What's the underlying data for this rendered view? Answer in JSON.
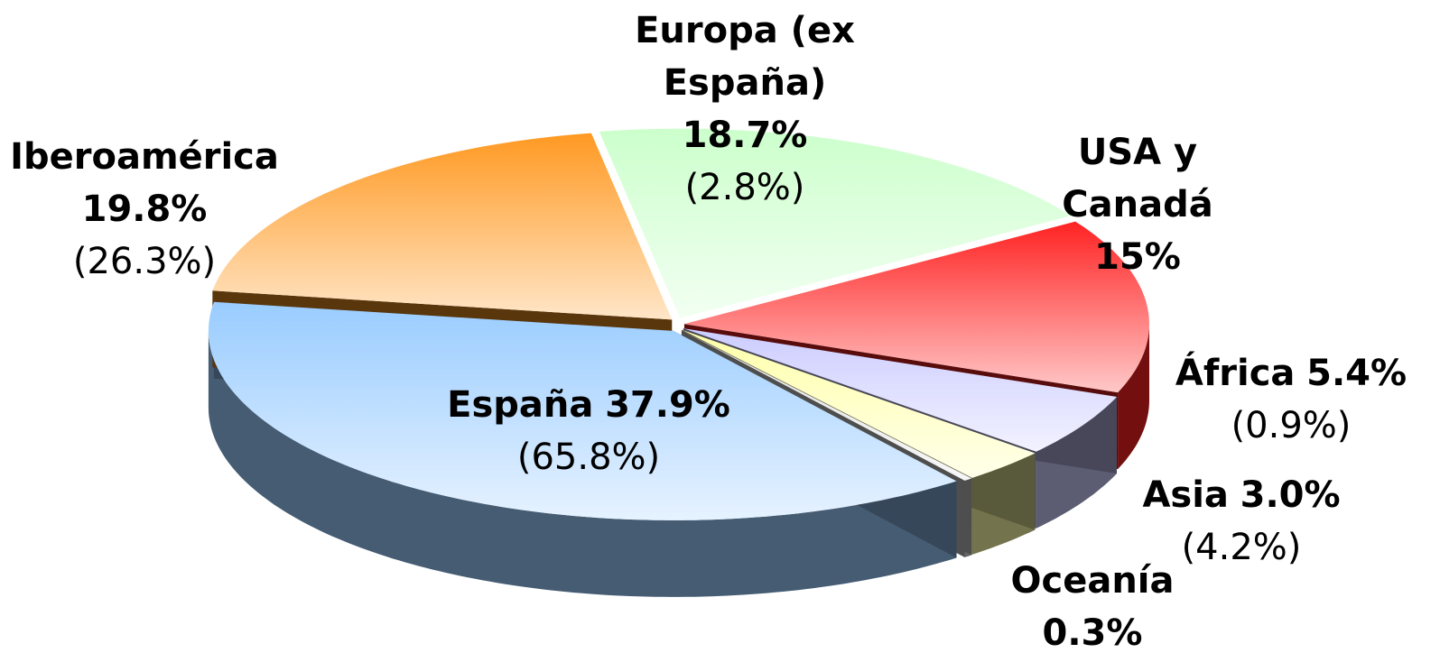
{
  "chart_data": {
    "type": "pie3d",
    "categories": [
      "Europa (ex España)",
      "USA y Canadá",
      "África",
      "Asia",
      "Oceanía",
      "España",
      "Iberoamérica"
    ],
    "values": [
      18.7,
      15,
      5.4,
      3.0,
      0.3,
      37.9,
      19.8
    ],
    "value_labels": [
      "18.7%",
      "15%",
      "5.4%",
      "3.0%",
      "0.3%",
      "37.9%",
      "19.8%"
    ],
    "secondary_values": [
      2.8,
      null,
      0.9,
      4.2,
      null,
      65.8,
      26.3
    ],
    "secondary_labels": [
      "(2.8%)",
      null,
      "(0.9%)",
      "(4.2%)",
      null,
      "(65.8%)",
      "(26.3%)"
    ],
    "colors": [
      "#ccffcc",
      "#ff2222",
      "#ccccff",
      "#ffffaa",
      "#e0e0e0",
      "#99ccff",
      "#ff9922"
    ]
  }
}
